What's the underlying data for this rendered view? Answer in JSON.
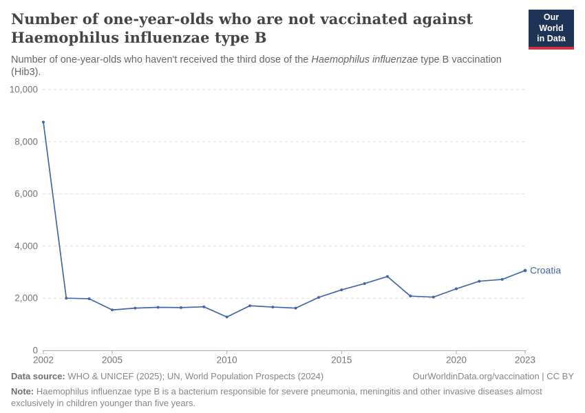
{
  "header": {
    "title_line1": "Number of one-year-olds who are not vaccinated against",
    "title_line2": "Haemophilus influenzae type B",
    "subtitle_pre": "Number of one-year-olds who haven't received the third dose of the ",
    "subtitle_italic": "Haemophilus influenzae",
    "subtitle_post": " type B vaccination (Hib3).",
    "logo": {
      "line1": "Our World",
      "line2": "in Data",
      "bg_color": "#1d3456",
      "bar_color": "#d13240"
    }
  },
  "chart_data": {
    "type": "line",
    "title": "Number of one-year-olds who are not vaccinated against Haemophilus influenzae type B",
    "xlabel": "",
    "ylabel": "",
    "xlim": [
      2002,
      2023
    ],
    "ylim": [
      0,
      10000
    ],
    "grid": "horizontal-dashed",
    "legend_position": "end-of-line-label",
    "colors": {
      "gridline": "#dcdcdc",
      "axis": "#a9a9a9",
      "tick_label": "#757575"
    },
    "x_ticks": [
      {
        "value": 2002,
        "label": "2002"
      },
      {
        "value": 2005,
        "label": "2005"
      },
      {
        "value": 2010,
        "label": "2010"
      },
      {
        "value": 2015,
        "label": "2015"
      },
      {
        "value": 2020,
        "label": "2020"
      },
      {
        "value": 2023,
        "label": "2023"
      }
    ],
    "y_ticks": [
      {
        "value": 0,
        "label": "0"
      },
      {
        "value": 2000,
        "label": "2,000"
      },
      {
        "value": 4000,
        "label": "4,000"
      },
      {
        "value": 6000,
        "label": "6,000"
      },
      {
        "value": 8000,
        "label": "8,000"
      },
      {
        "value": 10000,
        "label": "10,000"
      }
    ],
    "series": [
      {
        "name": "Croatia",
        "color": "#4266a8",
        "x": [
          2002,
          2003,
          2004,
          2005,
          2006,
          2007,
          2008,
          2009,
          2010,
          2011,
          2012,
          2013,
          2014,
          2015,
          2016,
          2017,
          2018,
          2019,
          2020,
          2021,
          2022,
          2023
        ],
        "values": [
          8750,
          2000,
          1980,
          1550,
          1620,
          1650,
          1640,
          1670,
          1280,
          1710,
          1660,
          1620,
          2030,
          2320,
          2560,
          2830,
          2080,
          2040,
          2360,
          2650,
          2720,
          3060
        ]
      }
    ]
  },
  "footer": {
    "data_source_label": "Data source:",
    "data_source_text": "WHO & UNICEF (2025); UN, World Population Prospects (2024)",
    "link_text": "OurWorldinData.org/vaccination | CC BY",
    "note_label": "Note:",
    "note_text": "Haemophilus influenzae type B is a bacterium responsible for severe pneumonia, meningitis and other invasive diseases almost exclusively in children younger than five years."
  }
}
